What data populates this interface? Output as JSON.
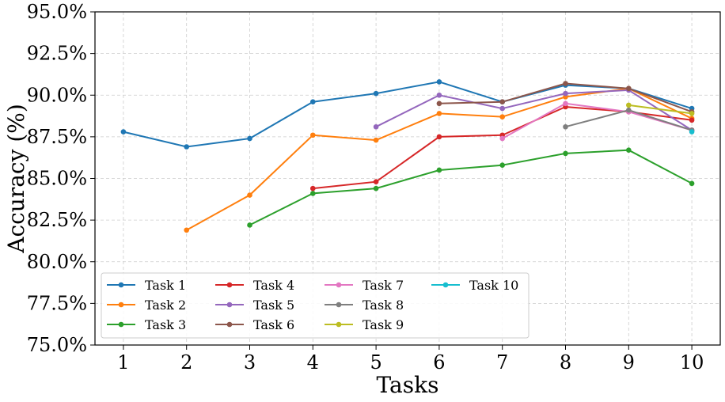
{
  "chart_data": {
    "type": "line",
    "title": "",
    "xlabel": "Tasks",
    "ylabel": "Accuracy (%)",
    "xlim": [
      0.55,
      10.45
    ],
    "ylim": [
      75.0,
      95.0
    ],
    "grid": true,
    "legend_position": "lower-left",
    "x_ticks": [
      1,
      2,
      3,
      4,
      5,
      6,
      7,
      8,
      9,
      10
    ],
    "x_tick_labels": [
      "1",
      "2",
      "3",
      "4",
      "5",
      "6",
      "7",
      "8",
      "9",
      "10"
    ],
    "y_ticks": [
      75.0,
      77.5,
      80.0,
      82.5,
      85.0,
      87.5,
      90.0,
      92.5,
      95.0
    ],
    "y_tick_labels": [
      "75.0%",
      "77.5%",
      "80.0%",
      "82.5%",
      "85.0%",
      "87.5%",
      "90.0%",
      "92.5%",
      "95.0%"
    ],
    "series": [
      {
        "name": "Task 1",
        "color": "#1f77b4",
        "x": [
          1,
          2,
          3,
          4,
          5,
          6,
          7,
          8,
          9,
          10
        ],
        "values": [
          87.8,
          86.9,
          87.4,
          89.6,
          90.1,
          90.8,
          89.6,
          90.6,
          90.4,
          89.2
        ]
      },
      {
        "name": "Task 2",
        "color": "#ff7f0e",
        "x": [
          2,
          3,
          4,
          5,
          6,
          7,
          8,
          9,
          10
        ],
        "values": [
          81.9,
          84.0,
          87.6,
          87.3,
          88.9,
          88.7,
          89.9,
          90.4,
          88.6
        ]
      },
      {
        "name": "Task 3",
        "color": "#2ca02c",
        "x": [
          3,
          4,
          5,
          6,
          7,
          8,
          9,
          10
        ],
        "values": [
          82.2,
          84.1,
          84.4,
          85.5,
          85.8,
          86.5,
          86.7,
          84.7
        ]
      },
      {
        "name": "Task 4",
        "color": "#d62728",
        "x": [
          4,
          5,
          6,
          7,
          8,
          9,
          10
        ],
        "values": [
          84.4,
          84.8,
          87.5,
          87.6,
          89.3,
          89.0,
          88.5
        ]
      },
      {
        "name": "Task 5",
        "color": "#9467bd",
        "x": [
          5,
          6,
          7,
          8,
          9,
          10
        ],
        "values": [
          88.1,
          90.0,
          89.2,
          90.1,
          90.3,
          87.9
        ]
      },
      {
        "name": "Task 6",
        "color": "#8c564b",
        "x": [
          6,
          7,
          8,
          9,
          10
        ],
        "values": [
          89.5,
          89.6,
          90.7,
          90.4,
          89.0
        ]
      },
      {
        "name": "Task 7",
        "color": "#e377c2",
        "x": [
          7,
          8,
          9,
          10
        ],
        "values": [
          87.4,
          89.5,
          89.0,
          87.9
        ]
      },
      {
        "name": "Task 8",
        "color": "#7f7f7f",
        "x": [
          8,
          9,
          10
        ],
        "values": [
          88.1,
          89.1,
          87.9
        ]
      },
      {
        "name": "Task 9",
        "color": "#bcbd22",
        "x": [
          9,
          10
        ],
        "values": [
          89.4,
          88.9
        ]
      },
      {
        "name": "Task 10",
        "color": "#17becf",
        "x": [
          10
        ],
        "values": [
          87.8
        ]
      }
    ]
  }
}
